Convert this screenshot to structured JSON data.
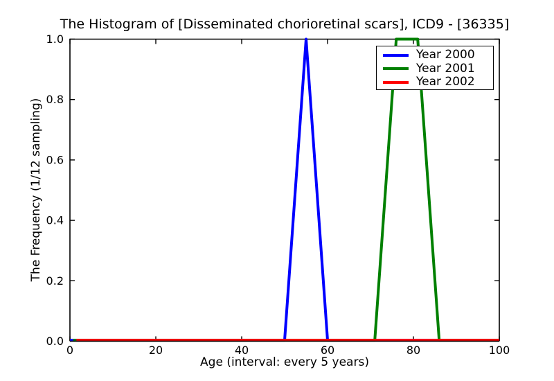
{
  "chart_data": {
    "type": "line",
    "title": "The Histogram of [Disseminated chorioretinal scars], ICD9 - [36335]",
    "xlabel": "Age (interval: every 5 years)",
    "ylabel": "The Frequency (1/12 sampling)",
    "xlim": [
      0,
      100
    ],
    "ylim": [
      0.0,
      1.0
    ],
    "xticks": [
      0,
      20,
      40,
      60,
      80,
      100
    ],
    "xtick_labels": [
      "0",
      "20",
      "40",
      "60",
      "80",
      "100"
    ],
    "yticks": [
      0.0,
      0.2,
      0.4,
      0.6,
      0.8,
      1.0
    ],
    "ytick_labels": [
      "0.0",
      "0.2",
      "0.4",
      "0.6",
      "0.8",
      "1.0"
    ],
    "grid": false,
    "legend": {
      "position": "upper right",
      "border_color": "#000000",
      "background": "#ffffff"
    },
    "axis_color": "#000000",
    "text_color": "#000000",
    "series": [
      {
        "name": "Year 2000",
        "color": "#0000ff",
        "points": [
          [
            0,
            0
          ],
          [
            50,
            0
          ],
          [
            55,
            1.0
          ],
          [
            60,
            0
          ],
          [
            100,
            0
          ]
        ]
      },
      {
        "name": "Year 2001",
        "color": "#008000",
        "points": [
          [
            0,
            0
          ],
          [
            71,
            0
          ],
          [
            76,
            1.0
          ],
          [
            81,
            1.0
          ],
          [
            86,
            0
          ],
          [
            100,
            0
          ]
        ]
      },
      {
        "name": "Year 2002",
        "color": "#ff0000",
        "points": [
          [
            0,
            0
          ],
          [
            100,
            0
          ]
        ]
      }
    ]
  }
}
